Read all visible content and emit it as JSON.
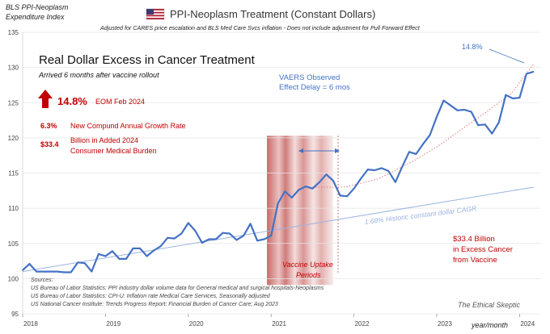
{
  "header": {
    "flag_icon": "us-flag-icon",
    "title": "PPI-Neoplasm  Treatment  (Constant Dollars)",
    "subtitle": "Adjusted for CARES price escalation and BLS Med Care Svcs inflation - Does not include adjustment for Pull Forward Effect",
    "ylabel_line1": "BLS PPI-Neoplasm",
    "ylabel_line2": "Expenditure Index"
  },
  "callouts": {
    "main_title": "Real Dollar Excess in Cancer Treatment",
    "main_sub": "Arrived 6 months after vaccine rollout",
    "pct_value": "14.8%",
    "pct_label": "EOM Feb 2024",
    "cagr_value": "6.3%",
    "cagr_label": "New Compund Annual Growth Rate",
    "burden_value": "$33.4",
    "burden_label1": "Billion in Added 2024",
    "burden_label2": "Consumer Medical Burden",
    "vaers_line1": "VAERS Observed",
    "vaers_line2": "Effect Delay = 6 mos",
    "uptake_line1": "Vaccine Uptake",
    "uptake_line2": "Periods",
    "historic_label": "1.68%   Historic constant dollar CAGR",
    "excess_line1": "$33.4 Billion",
    "excess_line2": "in Excess Cancer",
    "excess_line3": "from Vaccine",
    "top_pct": "14.8%",
    "xaxis_title": "year/month",
    "sources": [
      "Sources:",
      "US Bureau of Labor Statistics: PPI industry dollar volume data for General medical and surgical hospitals-Neoplasms",
      "US Bureau of Labor Statistics: CPI-U: Inflation rate Medical Care Services, Seasonally adjusted",
      "US National Cancer Institute: Trends Progress Report: Financial Burden of Cancer Care; Aug 2023"
    ],
    "watermark": "The Ethical Skeptic"
  },
  "colors": {
    "series": "#4472C4",
    "trend": "#9DB3E0",
    "accent": "#C00000",
    "band": "#C0504D"
  },
  "chart_data": {
    "type": "line",
    "ylim": [
      95,
      135
    ],
    "yticks": [
      95,
      100,
      105,
      110,
      115,
      120,
      125,
      130,
      135
    ],
    "xlim": [
      2018.0,
      2024.25
    ],
    "xtick_labels": [
      "2018",
      "2019",
      "2020",
      "2021",
      "2022",
      "2023",
      "2024"
    ],
    "grid": true,
    "series": [
      {
        "x": [
          2018.0,
          2018.083,
          2018.167,
          2018.25,
          2018.333,
          2018.417,
          2018.5,
          2018.583,
          2018.667,
          2018.75,
          2018.833,
          2018.917,
          2019.0,
          2019.083,
          2019.167,
          2019.25,
          2019.333,
          2019.417,
          2019.5,
          2019.583,
          2019.667,
          2019.75,
          2019.833,
          2019.917,
          2020.0,
          2020.083,
          2020.167,
          2020.25,
          2020.333,
          2020.417,
          2020.5,
          2020.583,
          2020.667,
          2020.75,
          2020.833,
          2020.917,
          2021.0,
          2021.083,
          2021.167,
          2021.25,
          2021.333,
          2021.417,
          2021.5,
          2021.583,
          2021.667,
          2021.75,
          2021.833,
          2021.917,
          2022.0,
          2022.083,
          2022.167,
          2022.25,
          2022.333,
          2022.417,
          2022.5,
          2022.583,
          2022.667,
          2022.75,
          2022.833,
          2022.917,
          2023.0,
          2023.083,
          2023.167,
          2023.25,
          2023.333,
          2023.417,
          2023.5,
          2023.583,
          2023.667,
          2023.75,
          2023.833,
          2023.917,
          2024.0,
          2024.083,
          2024.167
        ],
        "values": [
          101.2,
          102.1,
          101.0,
          101.0,
          101.0,
          101.0,
          100.9,
          100.9,
          102.3,
          102.2,
          101.0,
          103.5,
          103.2,
          103.9,
          102.8,
          102.8,
          104.3,
          104.3,
          103.2,
          104.0,
          104.6,
          105.8,
          105.7,
          106.4,
          107.9,
          106.8,
          105.1,
          105.6,
          105.6,
          106.5,
          106.4,
          105.5,
          106.1,
          107.8,
          105.4,
          105.6,
          106.1,
          110.7,
          112.4,
          111.5,
          112.6,
          113.1,
          112.8,
          113.7,
          114.8,
          113.9,
          111.8,
          111.7,
          112.8,
          114.2,
          115.5,
          115.4,
          115.7,
          115.3,
          113.7,
          115.9,
          118.0,
          117.7,
          119.1,
          120.4,
          123.0,
          125.3,
          124.6,
          123.9,
          124.0,
          123.7,
          121.8,
          121.9,
          120.6,
          122.2,
          126.1,
          125.6,
          125.7,
          129.1,
          129.4
        ]
      }
    ]
  }
}
